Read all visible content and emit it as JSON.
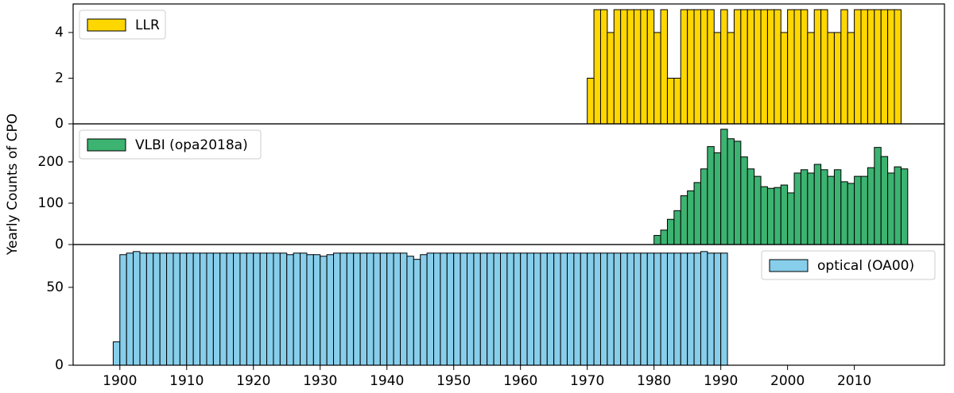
{
  "chart_data": [
    {
      "type": "histogram",
      "legend": "upper left",
      "series": [
        {
          "name": "LLR",
          "color": "#ffd700",
          "bins": [
            1970,
            1971,
            1972,
            1973,
            1974,
            1975,
            1976,
            1977,
            1978,
            1979,
            1980,
            1981,
            1982,
            1983,
            1984,
            1985,
            1986,
            1987,
            1988,
            1989,
            1990,
            1991,
            1992,
            1993,
            1994,
            1995,
            1996,
            1997,
            1998,
            1999,
            2000,
            2001,
            2002,
            2003,
            2004,
            2005,
            2006,
            2007,
            2008,
            2009,
            2010,
            2011,
            2012,
            2013,
            2014,
            2015,
            2016,
            2017
          ],
          "values": [
            2,
            5,
            5,
            4,
            5,
            5,
            5,
            5,
            5,
            5,
            4,
            5,
            2,
            2,
            5,
            5,
            5,
            5,
            5,
            4,
            5,
            4,
            5,
            5,
            5,
            5,
            5,
            5,
            5,
            4,
            5,
            5,
            5,
            4,
            5,
            5,
            4,
            4,
            5,
            4,
            5,
            5,
            5,
            5,
            5,
            5,
            5
          ]
        }
      ],
      "xlim": [
        1893,
        2023.5
      ],
      "ylim": [
        0,
        5.25
      ],
      "yticks": [
        0,
        2,
        4
      ]
    },
    {
      "type": "histogram",
      "legend": "upper left",
      "ylabel": "Yearly Counts of CPO",
      "series": [
        {
          "name": "VLBI (opa2018a)",
          "color": "#3cb371",
          "bins": [
            1980,
            1981,
            1982,
            1983,
            1984,
            1985,
            1986,
            1987,
            1988,
            1989,
            1990,
            1991,
            1992,
            1993,
            1994,
            1995,
            1996,
            1997,
            1998,
            1999,
            2000,
            2001,
            2002,
            2003,
            2004,
            2005,
            2006,
            2007,
            2008,
            2009,
            2010,
            2011,
            2012,
            2013,
            2014,
            2015,
            2016,
            2017,
            2018
          ],
          "values": [
            22,
            35,
            61,
            82,
            118,
            130,
            150,
            183,
            237,
            222,
            279,
            256,
            250,
            212,
            183,
            165,
            140,
            136,
            138,
            144,
            125,
            173,
            181,
            173,
            194,
            181,
            165,
            181,
            152,
            148,
            165,
            165,
            186,
            235,
            213,
            173,
            188,
            183
          ]
        }
      ],
      "xlim": [
        1893,
        2023.5
      ],
      "ylim": [
        0,
        292
      ],
      "yticks": [
        0,
        100,
        200
      ]
    },
    {
      "type": "histogram",
      "legend": "upper right",
      "series": [
        {
          "name": "optical (OA00)",
          "color": "#87ceeb",
          "bins": [
            1899,
            1900,
            1901,
            1902,
            1903,
            1904,
            1905,
            1906,
            1907,
            1908,
            1909,
            1910,
            1911,
            1912,
            1913,
            1914,
            1915,
            1916,
            1917,
            1918,
            1919,
            1920,
            1921,
            1922,
            1923,
            1924,
            1925,
            1926,
            1927,
            1928,
            1929,
            1930,
            1931,
            1932,
            1933,
            1934,
            1935,
            1936,
            1937,
            1938,
            1939,
            1940,
            1941,
            1942,
            1943,
            1944,
            1945,
            1946,
            1947,
            1948,
            1949,
            1950,
            1951,
            1952,
            1953,
            1954,
            1955,
            1956,
            1957,
            1958,
            1959,
            1960,
            1961,
            1962,
            1963,
            1964,
            1965,
            1966,
            1967,
            1968,
            1969,
            1970,
            1971,
            1972,
            1973,
            1974,
            1975,
            1976,
            1977,
            1978,
            1979,
            1980,
            1981,
            1982,
            1983,
            1984,
            1985,
            1986,
            1987,
            1988,
            1989,
            1990,
            1991
          ],
          "values": [
            15,
            71,
            72,
            73,
            72,
            72,
            72,
            72,
            72,
            72,
            72,
            72,
            72,
            72,
            72,
            72,
            72,
            72,
            72,
            72,
            72,
            72,
            72,
            72,
            72,
            72,
            71,
            72,
            72,
            71,
            71,
            70,
            71,
            72,
            72,
            72,
            72,
            72,
            72,
            72,
            72,
            72,
            72,
            72,
            70,
            68,
            71,
            72,
            72,
            72,
            72,
            72,
            72,
            72,
            72,
            72,
            72,
            72,
            72,
            72,
            72,
            72,
            72,
            72,
            72,
            72,
            72,
            72,
            72,
            72,
            72,
            72,
            72,
            72,
            72,
            72,
            72,
            72,
            72,
            72,
            72,
            72,
            72,
            72,
            72,
            72,
            72,
            72,
            73,
            72,
            72,
            72
          ]
        }
      ],
      "xlim": [
        1893,
        2023.5
      ],
      "ylim": [
        0,
        77.5
      ],
      "yticks": [
        0,
        50
      ],
      "xticks": [
        1900,
        1910,
        1920,
        1930,
        1940,
        1950,
        1960,
        1970,
        1980,
        1990,
        2000,
        2010
      ]
    }
  ]
}
